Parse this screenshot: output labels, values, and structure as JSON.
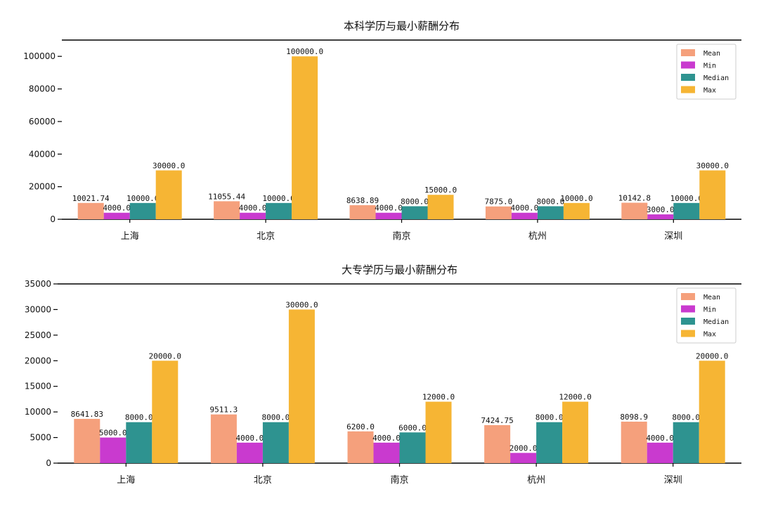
{
  "chart_data": [
    {
      "type": "bar",
      "title": "本科学历与最小薪酬分布",
      "categories": [
        "上海",
        "北京",
        "南京",
        "杭州",
        "深圳"
      ],
      "series": [
        {
          "name": "Mean",
          "color": "#F5A07C",
          "values": [
            10021.74,
            11055.44,
            8638.89,
            7875.0,
            10142.8
          ],
          "labels": [
            "10021.74",
            "11055.44",
            "8638.89",
            "7875.0",
            "10142.8"
          ]
        },
        {
          "name": "Min",
          "color": "#C93ACF",
          "values": [
            4000,
            4000,
            4000,
            4000,
            3000
          ],
          "labels": [
            "4000.0",
            "4000.0",
            "4000.0",
            "4000.0",
            "3000.0"
          ]
        },
        {
          "name": "Median",
          "color": "#2E9390",
          "values": [
            10000,
            10000,
            8000,
            8000,
            10000
          ],
          "labels": [
            "10000.0",
            "10000.0",
            "8000.0",
            "8000.0",
            "10000.0"
          ]
        },
        {
          "name": "Max",
          "color": "#F6B534",
          "values": [
            30000,
            100000,
            15000,
            10000,
            30000
          ],
          "labels": [
            "30000.0",
            "100000.0",
            "15000.0",
            "10000.0",
            "30000.0"
          ]
        }
      ],
      "yticks": [
        0,
        20000,
        40000,
        60000,
        80000,
        100000
      ],
      "ylim": [
        0,
        110000
      ],
      "legend": "top-right",
      "grid": false
    },
    {
      "type": "bar",
      "title": "大专学历与最小薪酬分布",
      "categories": [
        "上海",
        "北京",
        "南京",
        "杭州",
        "深圳"
      ],
      "series": [
        {
          "name": "Mean",
          "color": "#F5A07C",
          "values": [
            8641.83,
            9511.3,
            6200.0,
            7424.75,
            8098.9
          ],
          "labels": [
            "8641.83",
            "9511.3",
            "6200.0",
            "7424.75",
            "8098.9"
          ]
        },
        {
          "name": "Min",
          "color": "#C93ACF",
          "values": [
            5000,
            4000,
            4000,
            2000,
            4000
          ],
          "labels": [
            "5000.0",
            "4000.0",
            "4000.0",
            "2000.0",
            "4000.0"
          ]
        },
        {
          "name": "Median",
          "color": "#2E9390",
          "values": [
            8000,
            8000,
            6000,
            8000,
            8000
          ],
          "labels": [
            "8000.0",
            "8000.0",
            "6000.0",
            "8000.0",
            "8000.0"
          ]
        },
        {
          "name": "Max",
          "color": "#F6B534",
          "values": [
            20000,
            30000,
            12000,
            12000,
            20000
          ],
          "labels": [
            "20000.0",
            "30000.0",
            "12000.0",
            "12000.0",
            "20000.0"
          ]
        }
      ],
      "yticks": [
        0,
        5000,
        10000,
        15000,
        20000,
        25000,
        30000,
        35000
      ],
      "ylim": [
        0,
        35000
      ],
      "legend": "top-right",
      "grid": false
    }
  ]
}
